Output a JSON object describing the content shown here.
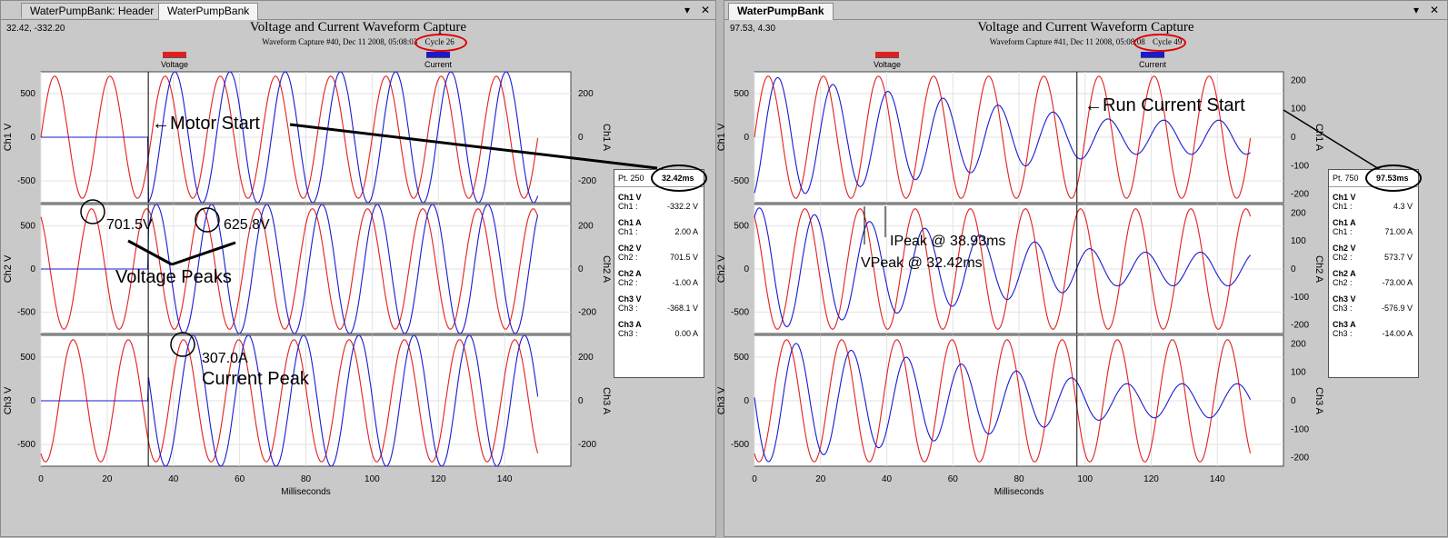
{
  "left": {
    "tabs": [
      "WaterPumpBank: Header",
      "WaterPumpBank"
    ],
    "coords": "32.42, -332.20",
    "title": "Voltage and Current Waveform Capture",
    "subtitle": "Waveform Capture #40, Dec 11 2008, 05:08:03",
    "cycle": "Cycle 26",
    "legend": {
      "voltage": "Voltage",
      "current": "Current"
    },
    "xlabel": "Milliseconds",
    "cursor": {
      "pt": "Pt. 250",
      "ms": "32.42ms"
    },
    "readout": [
      {
        "name": "Ch1 V",
        "label": "Ch1 :",
        "value": "-332.2 V"
      },
      {
        "name": "Ch1 A",
        "label": "Ch1 :",
        "value": "2.00 A"
      },
      {
        "name": "Ch2 V",
        "label": "Ch2 :",
        "value": "701.5 V"
      },
      {
        "name": "Ch2 A",
        "label": "Ch2 :",
        "value": "-1.00 A"
      },
      {
        "name": "Ch3 V",
        "label": "Ch3 :",
        "value": "-368.1 V"
      },
      {
        "name": "Ch3 A",
        "label": "Ch3 :",
        "value": "0.00 A"
      }
    ],
    "annotations": {
      "motor_start": "←Motor Start",
      "peak1": "701.5V",
      "peak2": "625.8V",
      "voltage_peaks": "Voltage Peaks",
      "current_val": "307.0A",
      "current_peak": "Current Peak"
    }
  },
  "right": {
    "tab": "WaterPumpBank",
    "coords": "97.53, 4.30",
    "title": "Voltage and Current Waveform Capture",
    "subtitle": "Waveform Capture #41, Dec 11 2008, 05:08:08",
    "cycle": "Cycle 49",
    "legend": {
      "voltage": "Voltage",
      "current": "Current"
    },
    "xlabel": "Milliseconds",
    "cursor": {
      "pt": "Pt. 750",
      "ms": "97.53ms"
    },
    "readout": [
      {
        "name": "Ch1 V",
        "label": "Ch1 :",
        "value": "4.3 V"
      },
      {
        "name": "Ch1 A",
        "label": "Ch1 :",
        "value": "71.00 A"
      },
      {
        "name": "Ch2 V",
        "label": "Ch2 :",
        "value": "573.7 V"
      },
      {
        "name": "Ch2 A",
        "label": "Ch2 :",
        "value": "-73.00 A"
      },
      {
        "name": "Ch3 V",
        "label": "Ch3 :",
        "value": "-576.9 V"
      },
      {
        "name": "Ch3 A",
        "label": "Ch3 :",
        "value": "-14.00 A"
      }
    ],
    "annotations": {
      "run_current": "←Run Current Start",
      "ipeak": "IPeak @ 38.93ms",
      "vpeak": "VPeak @ 32.42ms"
    }
  },
  "colors": {
    "voltage": "#e02020",
    "current": "#1a1ad0"
  },
  "chart_data": [
    {
      "type": "line",
      "title": "Voltage and Current Waveform Capture",
      "xlabel": "Milliseconds",
      "xlim": [
        0,
        160
      ],
      "xticks": [
        0,
        20,
        40,
        60,
        80,
        100,
        120,
        140
      ],
      "cursor_ms": 32.42,
      "panels": [
        {
          "ylabel_left": "Ch1 V",
          "ylabel_right": "Ch1 A",
          "vticks": [
            500,
            0,
            -500
          ],
          "aticks": [
            200,
            0,
            -200
          ]
        },
        {
          "ylabel_left": "Ch2 V",
          "ylabel_right": "Ch2 A",
          "vticks": [
            500,
            0,
            -500
          ],
          "aticks": [
            200,
            0,
            -200
          ]
        },
        {
          "ylabel_left": "Ch3 V",
          "ylabel_right": "Ch3 A",
          "vticks": [
            500,
            0,
            -500
          ],
          "aticks": [
            200,
            0,
            -200
          ]
        }
      ],
      "series": [
        {
          "name": "Voltage",
          "amplitude_v": 700,
          "period_ms": 16.67,
          "ylim": [
            -750,
            750
          ]
        },
        {
          "name": "Current",
          "amplitude_a": 300,
          "period_ms": 16.67,
          "starts_ms": 32.42,
          "ylim": [
            -300,
            300
          ]
        }
      ]
    },
    {
      "type": "line",
      "title": "Voltage and Current Waveform Capture",
      "xlabel": "Milliseconds",
      "xlim": [
        0,
        160
      ],
      "xticks": [
        0,
        20,
        40,
        60,
        80,
        100,
        120,
        140
      ],
      "cursor_ms": 97.53,
      "panels": [
        {
          "ylabel_left": "Ch1 V",
          "ylabel_right": "Ch1 A",
          "vticks": [
            500,
            0,
            -500
          ],
          "aticks": [
            200,
            100,
            0,
            -100,
            -200
          ]
        },
        {
          "ylabel_left": "Ch2 V",
          "ylabel_right": "Ch2 A",
          "vticks": [
            500,
            0,
            -500
          ],
          "aticks": [
            200,
            100,
            0,
            -100,
            -200
          ]
        },
        {
          "ylabel_left": "Ch3 V",
          "ylabel_right": "Ch3 A",
          "vticks": [
            500,
            0,
            -500
          ],
          "aticks": [
            200,
            100,
            0,
            -100,
            -200
          ]
        }
      ],
      "series": [
        {
          "name": "Voltage",
          "amplitude_v": 700,
          "period_ms": 16.67,
          "ylim": [
            -750,
            750
          ]
        },
        {
          "name": "Current",
          "amplitude_a_start": 220,
          "amplitude_a_end": 60,
          "period_ms": 16.67,
          "ylim": [
            -230,
            230
          ]
        }
      ]
    }
  ]
}
